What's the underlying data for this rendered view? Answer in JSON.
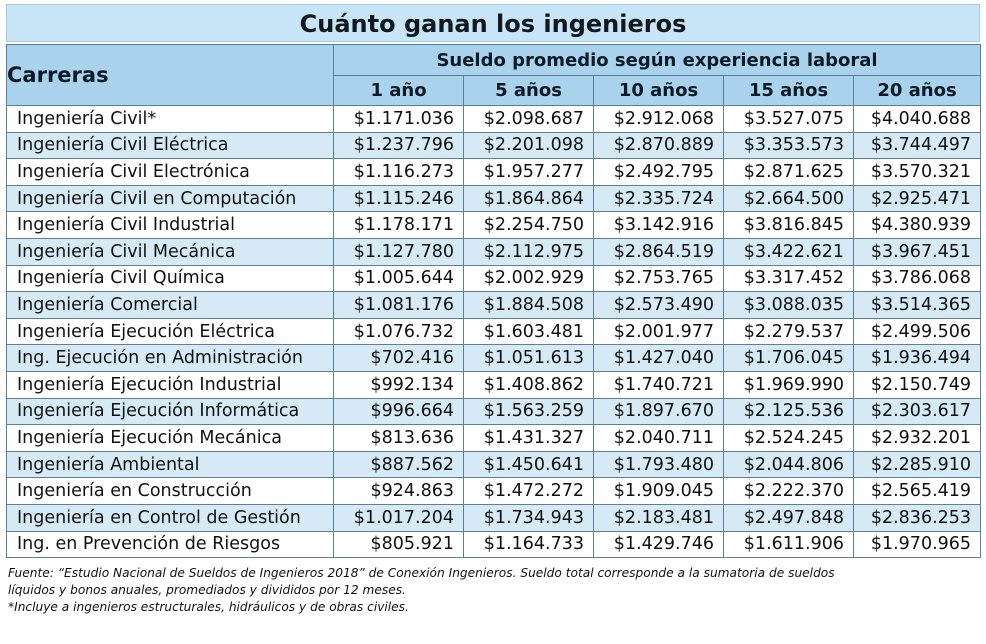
{
  "title": "Cuánto ganan los ingenieros",
  "chart_data": {
    "type": "table",
    "title": "Cuánto ganan los ingenieros",
    "row_header": "Carreras",
    "column_group_header": "Sueldo promedio según experiencia laboral",
    "columns": [
      "1 año",
      "5 años",
      "10 años",
      "15 años",
      "20 años"
    ],
    "rows": [
      {
        "name": "Ingeniería Civil*",
        "values": [
          "$1.171.036",
          "$2.098.687",
          "$2.912.068",
          "$3.527.075",
          "$4.040.688"
        ]
      },
      {
        "name": "Ingeniería Civil Eléctrica",
        "values": [
          "$1.237.796",
          "$2.201.098",
          "$2.870.889",
          "$3.353.573",
          "$3.744.497"
        ]
      },
      {
        "name": "Ingeniería Civil Electrónica",
        "values": [
          "$1.116.273",
          "$1.957.277",
          "$2.492.795",
          "$2.871.625",
          "$3.570.321"
        ]
      },
      {
        "name": "Ingeniería Civil en Computación",
        "values": [
          "$1.115.246",
          "$1.864.864",
          "$2.335.724",
          "$2.664.500",
          "$2.925.471"
        ]
      },
      {
        "name": "Ingeniería Civil Industrial",
        "values": [
          "$1.178.171",
          "$2.254.750",
          "$3.142.916",
          "$3.816.845",
          "$4.380.939"
        ]
      },
      {
        "name": "Ingeniería Civil Mecánica",
        "values": [
          "$1.127.780",
          "$2.112.975",
          "$2.864.519",
          "$3.422.621",
          "$3.967.451"
        ]
      },
      {
        "name": "Ingeniería Civil Química",
        "values": [
          "$1.005.644",
          "$2.002.929",
          "$2.753.765",
          "$3.317.452",
          "$3.786.068"
        ]
      },
      {
        "name": "Ingeniería Comercial",
        "values": [
          "$1.081.176",
          "$1.884.508",
          "$2.573.490",
          "$3.088.035",
          "$3.514.365"
        ]
      },
      {
        "name": "Ingeniería Ejecución Eléctrica",
        "values": [
          "$1.076.732",
          "$1.603.481",
          "$2.001.977",
          "$2.279.537",
          "$2.499.506"
        ]
      },
      {
        "name": "Ing. Ejecución en Administración",
        "values": [
          "$702.416",
          "$1.051.613",
          "$1.427.040",
          "$1.706.045",
          "$1.936.494"
        ]
      },
      {
        "name": "Ingeniería Ejecución Industrial",
        "values": [
          "$992.134",
          "$1.408.862",
          "$1.740.721",
          "$1.969.990",
          "$2.150.749"
        ]
      },
      {
        "name": "Ingeniería Ejecución Informática",
        "values": [
          "$996.664",
          "$1.563.259",
          "$1.897.670",
          "$2.125.536",
          "$2.303.617"
        ]
      },
      {
        "name": "Ingeniería Ejecución Mecánica",
        "values": [
          "$813.636",
          "$1.431.327",
          "$2.040.711",
          "$2.524.245",
          "$2.932.201"
        ]
      },
      {
        "name": "Ingeniería Ambiental",
        "values": [
          "$887.562",
          "$1.450.641",
          "$1.793.480",
          "$2.044.806",
          "$2.285.910"
        ]
      },
      {
        "name": "Ingeniería en Construcción",
        "values": [
          "$924.863",
          "$1.472.272",
          "$1.909.045",
          "$2.222.370",
          "$2.565.419"
        ]
      },
      {
        "name": "Ingeniería en Control de Gestión",
        "values": [
          "$1.017.204",
          "$1.734.943",
          "$2.183.481",
          "$2.497.848",
          "$2.836.253"
        ]
      },
      {
        "name": "Ing. en Prevención de Riesgos",
        "values": [
          "$805.921",
          "$1.164.733",
          "$1.429.746",
          "$1.611.906",
          "$1.970.965"
        ]
      }
    ]
  },
  "notes": {
    "source_line1": "Fuente: “Estudio Nacional de Sueldos de Ingenieros 2018” de Conexión Ingenieros. Sueldo total corresponde a la sumatoria de sueldos",
    "source_line2": "líquidos y bonos anuales, promediados y divididos por 12 meses.",
    "footnote": "*Incluye a ingenieros estructurales, hidráulicos y de obras civiles."
  },
  "colors": {
    "header_bg": "#a9d3ec",
    "title_bg": "#c7e5f6",
    "alt_row_bg": "#d6eaf6",
    "border": "#5b7f96"
  }
}
